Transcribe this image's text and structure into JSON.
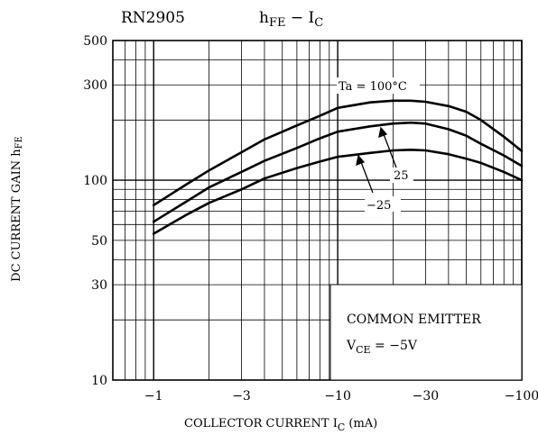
{
  "chart_data": {
    "type": "line",
    "part_number": "RN2905",
    "title": {
      "main": "h",
      "main_sub": "FE",
      "sep": " − I",
      "sep_sub": "C"
    },
    "xlabel": {
      "text": "COLLECTOR CURRENT  I",
      "sub": "C",
      "unit": "  (mA)"
    },
    "ylabel": {
      "text": "DC CURRENT GAIN h",
      "sub": "FE"
    },
    "x_scale": "log",
    "y_scale": "log",
    "xlim": [
      -0.6,
      -100
    ],
    "ylim": [
      10,
      500
    ],
    "x_ticks": [
      {
        "value": -1,
        "label": "−1"
      },
      {
        "value": -3,
        "label": "−3"
      },
      {
        "value": -10,
        "label": "−10"
      },
      {
        "value": -30,
        "label": "−30"
      },
      {
        "value": -100,
        "label": "−100"
      }
    ],
    "y_ticks": [
      {
        "value": 500,
        "label": "500"
      },
      {
        "value": 300,
        "label": "300"
      },
      {
        "value": 100,
        "label": "100"
      },
      {
        "value": 50,
        "label": "50"
      },
      {
        "value": 30,
        "label": "30"
      },
      {
        "value": 10,
        "label": "10"
      }
    ],
    "grid": true,
    "series": [
      {
        "name": "Ta = 100°C",
        "points": [
          [
            -1,
            75
          ],
          [
            -1.5,
            95
          ],
          [
            -2,
            112
          ],
          [
            -3,
            138
          ],
          [
            -4,
            160
          ],
          [
            -6,
            188
          ],
          [
            -8,
            210
          ],
          [
            -10,
            230
          ],
          [
            -15,
            245
          ],
          [
            -20,
            250
          ],
          [
            -25,
            250
          ],
          [
            -30,
            247
          ],
          [
            -40,
            235
          ],
          [
            -50,
            220
          ],
          [
            -60,
            200
          ],
          [
            -80,
            165
          ],
          [
            -100,
            140
          ]
        ]
      },
      {
        "name": "25",
        "points": [
          [
            -1,
            62
          ],
          [
            -1.5,
            78
          ],
          [
            -2,
            92
          ],
          [
            -3,
            110
          ],
          [
            -4,
            125
          ],
          [
            -6,
            145
          ],
          [
            -8,
            162
          ],
          [
            -10,
            175
          ],
          [
            -15,
            186
          ],
          [
            -20,
            192
          ],
          [
            -25,
            194
          ],
          [
            -30,
            192
          ],
          [
            -40,
            180
          ],
          [
            -50,
            167
          ],
          [
            -60,
            152
          ],
          [
            -80,
            133
          ],
          [
            -100,
            118
          ]
        ]
      },
      {
        "name": "−25",
        "points": [
          [
            -1,
            54
          ],
          [
            -1.5,
            67
          ],
          [
            -2,
            77
          ],
          [
            -3,
            90
          ],
          [
            -4,
            102
          ],
          [
            -6,
            115
          ],
          [
            -8,
            124
          ],
          [
            -10,
            131
          ],
          [
            -15,
            137
          ],
          [
            -20,
            141
          ],
          [
            -25,
            142
          ],
          [
            -30,
            141
          ],
          [
            -40,
            135
          ],
          [
            -50,
            128
          ],
          [
            -60,
            122
          ],
          [
            -80,
            110
          ],
          [
            -100,
            100
          ]
        ]
      }
    ],
    "annotations": {
      "ta_label": "Ta = 100°C",
      "label_25": "25",
      "label_m25": "−25"
    },
    "condition_box": {
      "line1": "COMMON EMITTER",
      "line2_main": "V",
      "line2_sub": "CE",
      "line2_rest": " = −5V"
    }
  }
}
